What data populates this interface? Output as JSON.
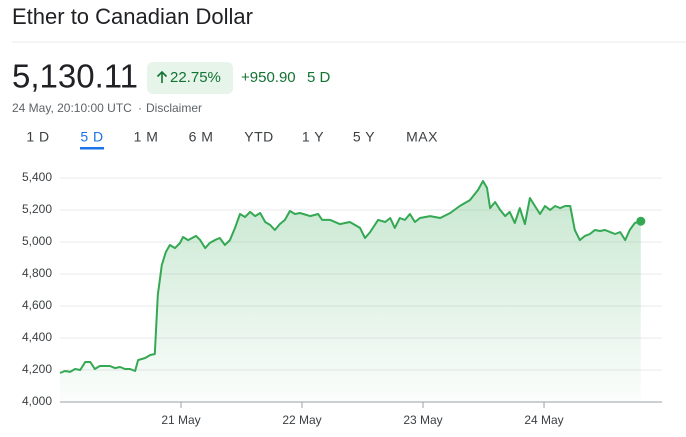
{
  "header": {
    "title": "Ether to Canadian Dollar"
  },
  "quote": {
    "price": "5,130.11",
    "change_percent": "22.75%",
    "change": "+950.90",
    "period": "5 D",
    "timestamp": "24 May, 20:10:00 UTC",
    "disclaimer": "Disclaimer"
  },
  "tabs": [
    "1 D",
    "5 D",
    "1 M",
    "6 M",
    "YTD",
    "1 Y",
    "5 Y",
    "MAX"
  ],
  "selected_tab": 1,
  "chart_data": {
    "type": "line",
    "color": "#34a853",
    "x": [
      0,
      1,
      2,
      3,
      4,
      5,
      6,
      6.9,
      7.9,
      9.9,
      10.9,
      11.9,
      12.9,
      13.9,
      14.9,
      15.5,
      16.9,
      17.9,
      18.8,
      19.4,
      20.2,
      21.0,
      21.8,
      22.8,
      23.8,
      24.4,
      25.4,
      26.2,
      27.0,
      27.8,
      28.8,
      29.7,
      30.7,
      31.7,
      32.7,
      33.7,
      34.7,
      35.7,
      36.7,
      37.7,
      38.7,
      39.7,
      40.7,
      41.7,
      42.6,
      43.6,
      44.6,
      45.6,
      46.6,
      47.6,
      49.6,
      51.2,
      52.0,
      53.6,
      55.5,
      57.5,
      59.5,
      60.5,
      61.5,
      63.1,
      64.5,
      65.5,
      66.4,
      67.4,
      68.4,
      69.4,
      70.4,
      71.4,
      73.4,
      75.4,
      77.4,
      79.3,
      81.3,
      82.9,
      83.9,
      84.7,
      85.3,
      86.3,
      87.3,
      88.3,
      89.2,
      90.2,
      91.2,
      92.2,
      93.2,
      94.2,
      95.2,
      96.2,
      97.2,
      98.2,
      99.2,
      100.2,
      101.2,
      102.1,
      103.1,
      104.1,
      105.1,
      106.1,
      107.1,
      108.1,
      109.1,
      110.1,
      111.1,
      112.1,
      113.0,
      114.0,
      115.2
    ],
    "values": [
      4181,
      4194,
      4188,
      4206,
      4200,
      4250,
      4250,
      4206,
      4225,
      4225,
      4212,
      4219,
      4206,
      4206,
      4194,
      4262,
      4275,
      4294,
      4300,
      4669,
      4856,
      4938,
      4981,
      4962,
      4994,
      5031,
      5012,
      5025,
      5038,
      5012,
      4962,
      4994,
      5012,
      5025,
      4981,
      5012,
      5088,
      5175,
      5156,
      5188,
      5162,
      5181,
      5125,
      5106,
      5075,
      5112,
      5138,
      5194,
      5175,
      5181,
      5162,
      5175,
      5138,
      5138,
      5112,
      5125,
      5088,
      5025,
      5062,
      5138,
      5125,
      5150,
      5088,
      5150,
      5138,
      5175,
      5125,
      5150,
      5162,
      5150,
      5181,
      5225,
      5262,
      5325,
      5381,
      5338,
      5212,
      5250,
      5200,
      5162,
      5188,
      5119,
      5212,
      5112,
      5275,
      5225,
      5175,
      5225,
      5200,
      5225,
      5212,
      5225,
      5225,
      5075,
      5012,
      5038,
      5050,
      5075,
      5069,
      5075,
      5062,
      5050,
      5062,
      5012,
      5075,
      5119,
      5130
    ],
    "xlim": [
      0,
      119.4
    ],
    "xticks": [
      {
        "value": 24,
        "label": "21 May"
      },
      {
        "value": 48,
        "label": "22 May"
      },
      {
        "value": 72,
        "label": "23 May"
      },
      {
        "value": 96,
        "label": "24 May"
      }
    ],
    "ylim": [
      4000,
      5400
    ],
    "yticks": [
      {
        "value": 4000,
        "label": "4,000"
      },
      {
        "value": 4200,
        "label": "4,200"
      },
      {
        "value": 4400,
        "label": "4,400"
      },
      {
        "value": 4600,
        "label": "4,600"
      },
      {
        "value": 4800,
        "label": "4,800"
      },
      {
        "value": 5000,
        "label": "5,000"
      },
      {
        "value": 5200,
        "label": "5,200"
      },
      {
        "value": 5400,
        "label": "5,400"
      }
    ],
    "grid": true
  }
}
